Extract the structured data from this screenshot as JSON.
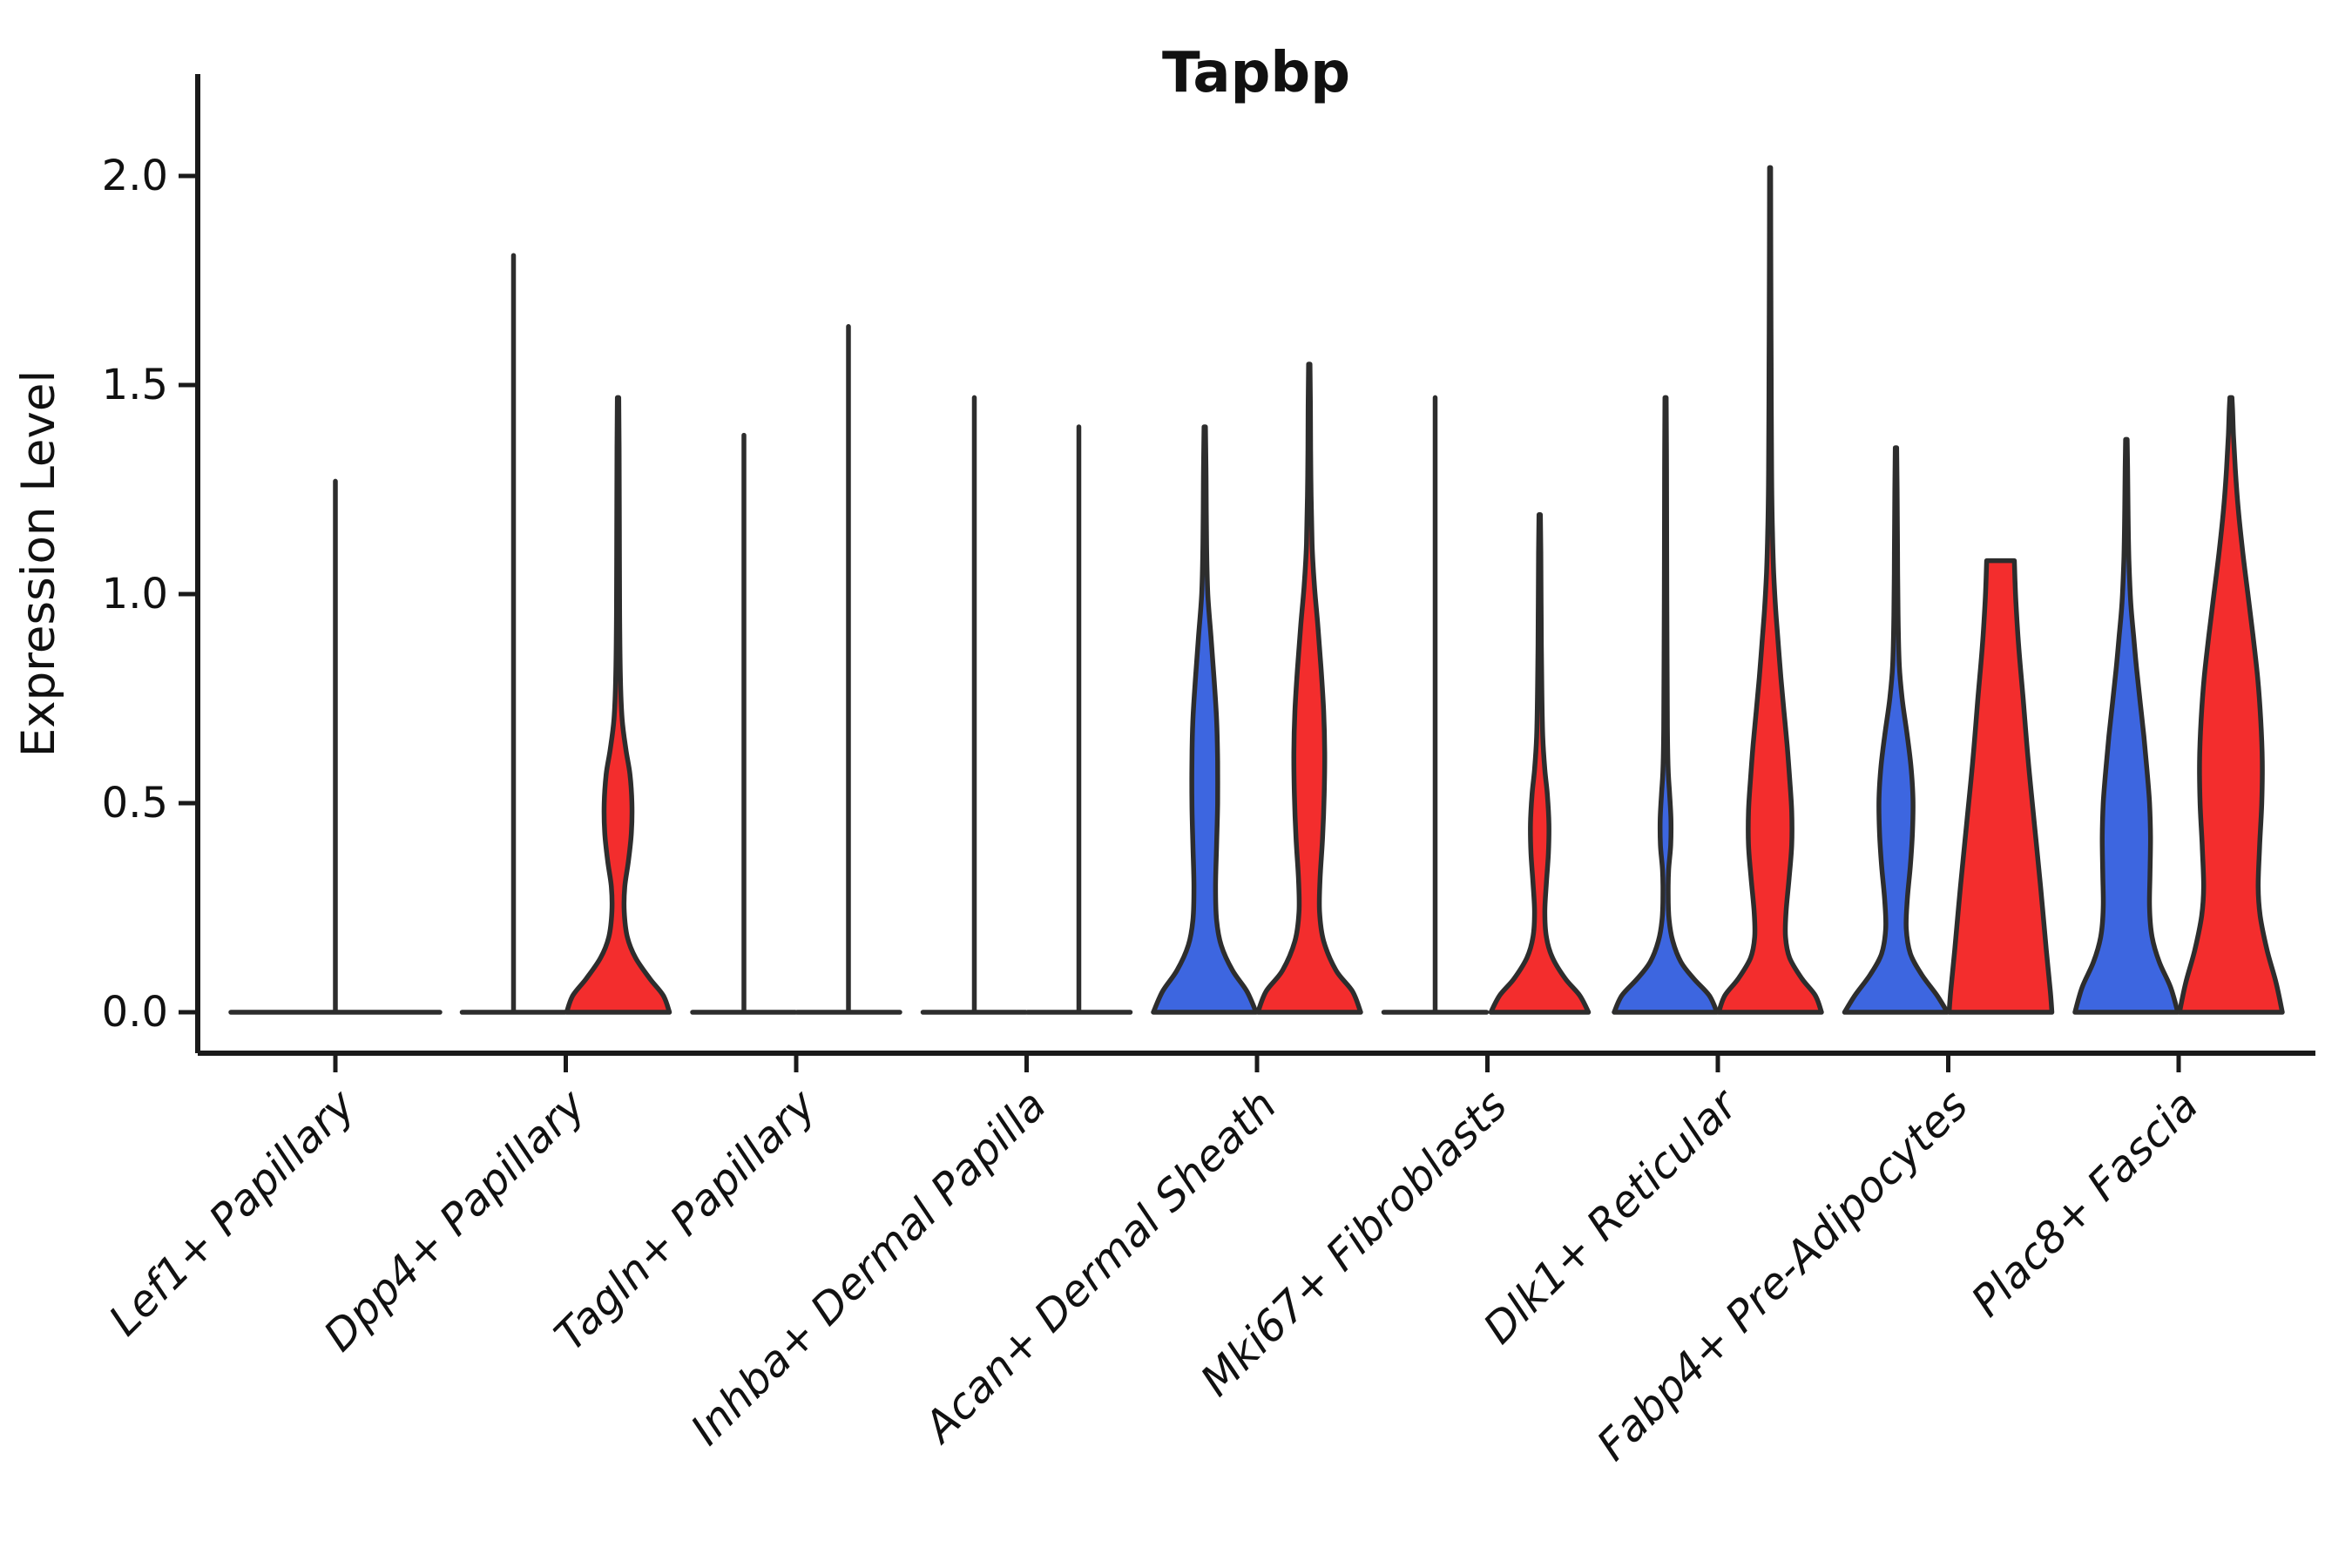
{
  "title": "Tapbp",
  "y_axis": {
    "label": "Expression Level"
  },
  "colors": {
    "blue": "#3D66E0",
    "red": "#F32D2D",
    "outline": "#2D2D2D",
    "axis": "#1A1A1A"
  },
  "chart_data": {
    "type": "violin",
    "title": "Tapbp",
    "xlabel": "",
    "ylabel": "Expression Level",
    "ylim": [
      -0.1,
      2.24
    ],
    "yticks": [
      "0.0",
      "0.5",
      "1.0",
      "1.5",
      "2.0"
    ],
    "ytick_values": [
      0.0,
      0.5,
      1.0,
      1.5,
      2.0
    ],
    "grid": false,
    "legend": "none",
    "categories": [
      "Lef1+ Papillary",
      "Dpp4+ Papillary",
      "Tagln+ Papillary",
      "Inhba+ Dermal Papilla",
      "Acan+ Dermal Sheath",
      "Mki67+ Fibroblasts",
      "Dlk1+ Reticular",
      "Fabp4+ Pre-Adipocytes",
      "Plac8+ Fascia"
    ],
    "groups": [
      "blue",
      "red"
    ],
    "violins": [
      {
        "category_index": 0,
        "category": "Lef1+ Papillary",
        "group": "single",
        "collapsed": true,
        "span": "full",
        "max_expression": 1.27,
        "profile": null
      },
      {
        "category_index": 1,
        "category": "Dpp4+ Papillary",
        "group": "blue",
        "collapsed": true,
        "max_expression": 1.81,
        "profile": null
      },
      {
        "category_index": 1,
        "category": "Dpp4+ Papillary",
        "group": "red",
        "collapsed": false,
        "max_expression": 1.47,
        "profile": [
          [
            0,
            1.0
          ],
          [
            0.04,
            0.88
          ],
          [
            0.08,
            0.62
          ],
          [
            0.13,
            0.34
          ],
          [
            0.18,
            0.18
          ],
          [
            0.24,
            0.12
          ],
          [
            0.3,
            0.13
          ],
          [
            0.36,
            0.2
          ],
          [
            0.43,
            0.26
          ],
          [
            0.5,
            0.27
          ],
          [
            0.57,
            0.23
          ],
          [
            0.63,
            0.15
          ],
          [
            0.7,
            0.08
          ],
          [
            0.8,
            0.045
          ],
          [
            0.95,
            0.03
          ],
          [
            1.15,
            0.025
          ],
          [
            1.35,
            0.02
          ],
          [
            1.47,
            0.013
          ]
        ]
      },
      {
        "category_index": 2,
        "category": "Tagln+ Papillary",
        "group": "blue",
        "collapsed": true,
        "max_expression": 1.38,
        "profile": null
      },
      {
        "category_index": 2,
        "category": "Tagln+ Papillary",
        "group": "red",
        "collapsed": true,
        "max_expression": 1.64,
        "profile": null
      },
      {
        "category_index": 3,
        "category": "Inhba+ Dermal Papilla",
        "group": "blue",
        "collapsed": true,
        "max_expression": 1.47,
        "profile": null
      },
      {
        "category_index": 3,
        "category": "Inhba+ Dermal Papilla",
        "group": "red",
        "collapsed": true,
        "max_expression": 1.4,
        "profile": null
      },
      {
        "category_index": 4,
        "category": "Acan+ Dermal Sheath",
        "group": "blue",
        "collapsed": false,
        "max_expression": 1.4,
        "profile": [
          [
            0,
            1.0
          ],
          [
            0.05,
            0.82
          ],
          [
            0.1,
            0.54
          ],
          [
            0.16,
            0.32
          ],
          [
            0.22,
            0.23
          ],
          [
            0.3,
            0.21
          ],
          [
            0.4,
            0.23
          ],
          [
            0.5,
            0.25
          ],
          [
            0.6,
            0.25
          ],
          [
            0.7,
            0.23
          ],
          [
            0.8,
            0.18
          ],
          [
            0.9,
            0.12
          ],
          [
            1.0,
            0.06
          ],
          [
            1.12,
            0.035
          ],
          [
            1.28,
            0.025
          ],
          [
            1.4,
            0.013
          ]
        ]
      },
      {
        "category_index": 4,
        "category": "Acan+ Dermal Sheath",
        "group": "red",
        "collapsed": false,
        "max_expression": 1.55,
        "profile": [
          [
            0,
            1.0
          ],
          [
            0.05,
            0.84
          ],
          [
            0.1,
            0.52
          ],
          [
            0.17,
            0.28
          ],
          [
            0.24,
            0.2
          ],
          [
            0.32,
            0.21
          ],
          [
            0.42,
            0.26
          ],
          [
            0.52,
            0.29
          ],
          [
            0.62,
            0.3
          ],
          [
            0.72,
            0.28
          ],
          [
            0.82,
            0.23
          ],
          [
            0.92,
            0.17
          ],
          [
            1.02,
            0.1
          ],
          [
            1.12,
            0.055
          ],
          [
            1.28,
            0.03
          ],
          [
            1.45,
            0.022
          ],
          [
            1.55,
            0.013
          ]
        ]
      },
      {
        "category_index": 5,
        "category": "Mki67+ Fibroblasts",
        "group": "blue",
        "collapsed": true,
        "max_expression": 1.47,
        "profile": null
      },
      {
        "category_index": 5,
        "category": "Mki67+ Fibroblasts",
        "group": "red",
        "collapsed": false,
        "max_expression": 1.19,
        "profile": [
          [
            0,
            0.95
          ],
          [
            0.04,
            0.78
          ],
          [
            0.08,
            0.5
          ],
          [
            0.13,
            0.25
          ],
          [
            0.18,
            0.13
          ],
          [
            0.24,
            0.1
          ],
          [
            0.31,
            0.13
          ],
          [
            0.38,
            0.17
          ],
          [
            0.45,
            0.18
          ],
          [
            0.52,
            0.15
          ],
          [
            0.58,
            0.1
          ],
          [
            0.66,
            0.06
          ],
          [
            0.78,
            0.04
          ],
          [
            0.95,
            0.028
          ],
          [
            1.1,
            0.022
          ],
          [
            1.19,
            0.013
          ]
        ]
      },
      {
        "category_index": 6,
        "category": "Dlk1+ Reticular",
        "group": "blue",
        "collapsed": false,
        "max_expression": 1.47,
        "profile": [
          [
            0,
            1.0
          ],
          [
            0.04,
            0.85
          ],
          [
            0.08,
            0.55
          ],
          [
            0.12,
            0.3
          ],
          [
            0.17,
            0.14
          ],
          [
            0.22,
            0.07
          ],
          [
            0.28,
            0.05
          ],
          [
            0.34,
            0.06
          ],
          [
            0.4,
            0.1
          ],
          [
            0.46,
            0.105
          ],
          [
            0.52,
            0.08
          ],
          [
            0.58,
            0.05
          ],
          [
            0.68,
            0.035
          ],
          [
            0.85,
            0.028
          ],
          [
            1.1,
            0.022
          ],
          [
            1.3,
            0.018
          ],
          [
            1.47,
            0.012
          ]
        ]
      },
      {
        "category_index": 6,
        "category": "Dlk1+ Reticular",
        "group": "red",
        "collapsed": false,
        "max_expression": 2.02,
        "profile": [
          [
            0,
            1.0
          ],
          [
            0.04,
            0.88
          ],
          [
            0.08,
            0.62
          ],
          [
            0.13,
            0.38
          ],
          [
            0.18,
            0.3
          ],
          [
            0.24,
            0.31
          ],
          [
            0.32,
            0.37
          ],
          [
            0.4,
            0.42
          ],
          [
            0.48,
            0.42
          ],
          [
            0.56,
            0.38
          ],
          [
            0.64,
            0.33
          ],
          [
            0.72,
            0.27
          ],
          [
            0.8,
            0.21
          ],
          [
            0.88,
            0.16
          ],
          [
            0.96,
            0.11
          ],
          [
            1.05,
            0.07
          ],
          [
            1.15,
            0.045
          ],
          [
            1.3,
            0.028
          ],
          [
            1.55,
            0.02
          ],
          [
            1.8,
            0.014
          ],
          [
            2.02,
            0.01
          ]
        ]
      },
      {
        "category_index": 7,
        "category": "Fabp4+ Pre-Adipocytes",
        "group": "blue",
        "collapsed": false,
        "max_expression": 1.35,
        "profile": [
          [
            0,
            1.0
          ],
          [
            0.04,
            0.8
          ],
          [
            0.09,
            0.5
          ],
          [
            0.14,
            0.28
          ],
          [
            0.2,
            0.2
          ],
          [
            0.27,
            0.22
          ],
          [
            0.35,
            0.28
          ],
          [
            0.43,
            0.32
          ],
          [
            0.51,
            0.33
          ],
          [
            0.59,
            0.29
          ],
          [
            0.67,
            0.21
          ],
          [
            0.75,
            0.12
          ],
          [
            0.83,
            0.065
          ],
          [
            0.95,
            0.04
          ],
          [
            1.1,
            0.03
          ],
          [
            1.25,
            0.022
          ],
          [
            1.35,
            0.014
          ]
        ]
      },
      {
        "category_index": 7,
        "category": "Fabp4+ Pre-Adipocytes",
        "group": "red",
        "collapsed": false,
        "flat_top": true,
        "max_expression": 1.08,
        "profile": [
          [
            0,
            1.0
          ],
          [
            0.05,
            0.97
          ],
          [
            0.15,
            0.89
          ],
          [
            0.3,
            0.78
          ],
          [
            0.45,
            0.66
          ],
          [
            0.6,
            0.54
          ],
          [
            0.75,
            0.44
          ],
          [
            0.88,
            0.35
          ],
          [
            0.98,
            0.3
          ],
          [
            1.04,
            0.28
          ],
          [
            1.08,
            0.27
          ]
        ]
      },
      {
        "category_index": 8,
        "category": "Plac8+ Fascia",
        "group": "blue",
        "collapsed": false,
        "max_expression": 1.37,
        "profile": [
          [
            0,
            1.0
          ],
          [
            0.06,
            0.86
          ],
          [
            0.12,
            0.64
          ],
          [
            0.18,
            0.5
          ],
          [
            0.25,
            0.45
          ],
          [
            0.33,
            0.46
          ],
          [
            0.42,
            0.47
          ],
          [
            0.5,
            0.45
          ],
          [
            0.58,
            0.4
          ],
          [
            0.66,
            0.34
          ],
          [
            0.74,
            0.27
          ],
          [
            0.82,
            0.2
          ],
          [
            0.9,
            0.14
          ],
          [
            0.98,
            0.085
          ],
          [
            1.08,
            0.05
          ],
          [
            1.2,
            0.032
          ],
          [
            1.3,
            0.024
          ],
          [
            1.37,
            0.015
          ]
        ]
      },
      {
        "category_index": 8,
        "category": "Plac8+ Fascia",
        "group": "red",
        "collapsed": false,
        "max_expression": 1.47,
        "profile": [
          [
            0,
            1.0
          ],
          [
            0.07,
            0.88
          ],
          [
            0.15,
            0.7
          ],
          [
            0.23,
            0.57
          ],
          [
            0.3,
            0.53
          ],
          [
            0.4,
            0.56
          ],
          [
            0.5,
            0.6
          ],
          [
            0.6,
            0.61
          ],
          [
            0.7,
            0.58
          ],
          [
            0.8,
            0.52
          ],
          [
            0.9,
            0.43
          ],
          [
            1.0,
            0.33
          ],
          [
            1.1,
            0.23
          ],
          [
            1.2,
            0.145
          ],
          [
            1.3,
            0.085
          ],
          [
            1.38,
            0.05
          ],
          [
            1.44,
            0.032
          ],
          [
            1.47,
            0.02
          ]
        ]
      }
    ]
  }
}
